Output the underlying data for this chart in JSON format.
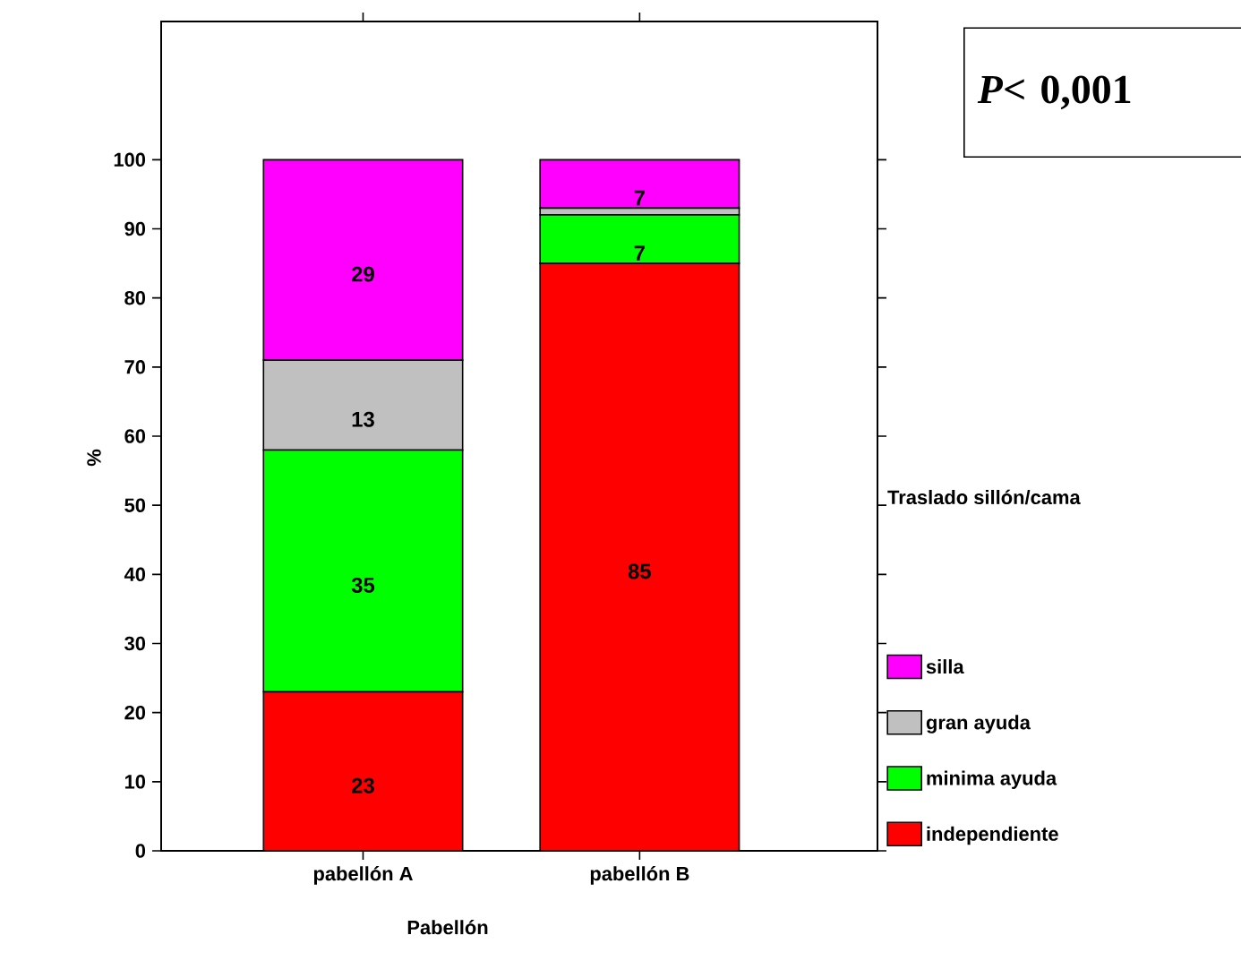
{
  "chart_data": {
    "type": "bar",
    "stacked": true,
    "xlabel": "Pabellón",
    "ylabel": "%",
    "categories": [
      "pabellón A",
      "pabellón B"
    ],
    "ylim": [
      0,
      120
    ],
    "yticks": [
      0,
      10,
      20,
      30,
      40,
      50,
      60,
      70,
      80,
      90,
      100
    ],
    "legend": "right",
    "legend_title": "Traslado sillón/cama",
    "annotations": [
      "*P*< 0,001"
    ],
    "series": [
      {
        "name": "independiente",
        "color": "#ff0000",
        "values": [
          23,
          85
        ],
        "value_labels": [
          "23",
          "85"
        ]
      },
      {
        "name": "minima ayuda",
        "color": "#00ff00",
        "values": [
          35,
          7
        ],
        "value_labels": [
          "35",
          "7"
        ]
      },
      {
        "name": "gran ayuda",
        "color": "#c0c0c0",
        "values": [
          13,
          1
        ],
        "value_labels": [
          "13",
          null
        ]
      },
      {
        "name": "silla",
        "color": "#ff00ff",
        "values": [
          29,
          7
        ],
        "value_labels": [
          "29",
          "7"
        ]
      }
    ]
  }
}
